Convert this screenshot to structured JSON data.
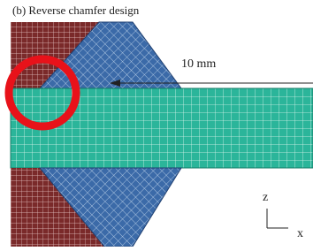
{
  "figure": {
    "caption": "(b) Reverse chamfer design",
    "dimension": "10 mm",
    "axes": {
      "vertical": "z",
      "horizontal": "x"
    }
  }
}
